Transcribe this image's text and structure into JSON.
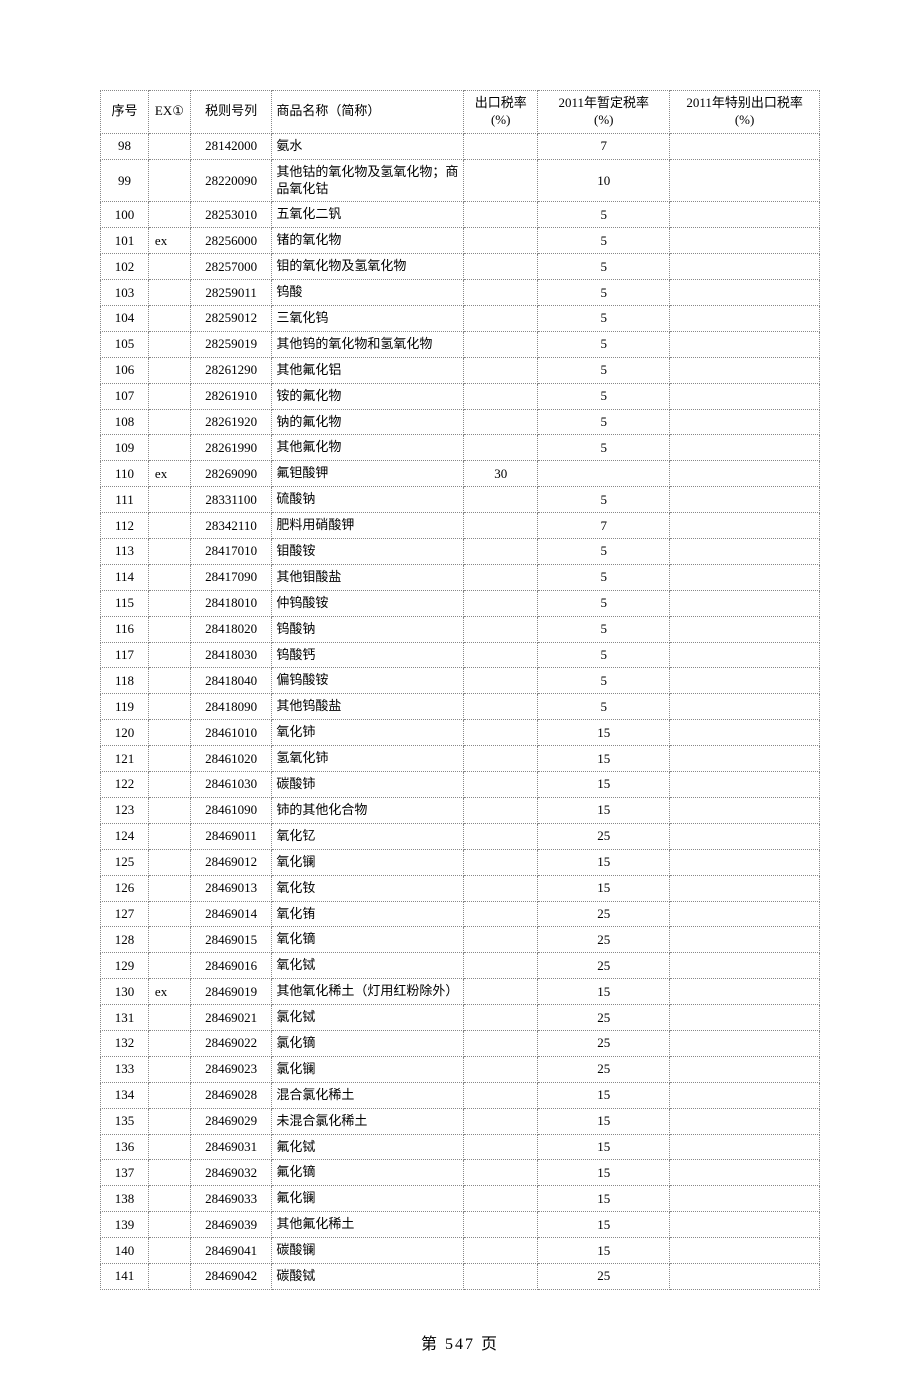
{
  "table": {
    "headers": {
      "seq": "序号",
      "ex": "EX①",
      "code": "税则号列",
      "name": "商品名称（简称）",
      "rate1": "出口税率\n(%)",
      "rate2": "2011年暂定税率\n(%)",
      "rate3": "2011年特别出口税率\n(%)"
    },
    "rows": [
      {
        "seq": "98",
        "ex": "",
        "code": "28142000",
        "name": "氨水",
        "rate1": "",
        "rate2": "7",
        "rate3": ""
      },
      {
        "seq": "99",
        "ex": "",
        "code": "28220090",
        "name": "其他钴的氧化物及氢氧化物；商品氧化钴",
        "rate1": "",
        "rate2": "10",
        "rate3": ""
      },
      {
        "seq": "100",
        "ex": "",
        "code": "28253010",
        "name": "五氧化二钒",
        "rate1": "",
        "rate2": "5",
        "rate3": ""
      },
      {
        "seq": "101",
        "ex": "ex",
        "code": "28256000",
        "name": "锗的氧化物",
        "rate1": "",
        "rate2": "5",
        "rate3": ""
      },
      {
        "seq": "102",
        "ex": "",
        "code": "28257000",
        "name": "钼的氧化物及氢氧化物",
        "rate1": "",
        "rate2": "5",
        "rate3": ""
      },
      {
        "seq": "103",
        "ex": "",
        "code": "28259011",
        "name": "钨酸",
        "rate1": "",
        "rate2": "5",
        "rate3": ""
      },
      {
        "seq": "104",
        "ex": "",
        "code": "28259012",
        "name": "三氧化钨",
        "rate1": "",
        "rate2": "5",
        "rate3": ""
      },
      {
        "seq": "105",
        "ex": "",
        "code": "28259019",
        "name": "其他钨的氧化物和氢氧化物",
        "rate1": "",
        "rate2": "5",
        "rate3": ""
      },
      {
        "seq": "106",
        "ex": "",
        "code": "28261290",
        "name": "其他氟化铝",
        "rate1": "",
        "rate2": "5",
        "rate3": ""
      },
      {
        "seq": "107",
        "ex": "",
        "code": "28261910",
        "name": "铵的氟化物",
        "rate1": "",
        "rate2": "5",
        "rate3": ""
      },
      {
        "seq": "108",
        "ex": "",
        "code": "28261920",
        "name": "钠的氟化物",
        "rate1": "",
        "rate2": "5",
        "rate3": ""
      },
      {
        "seq": "109",
        "ex": "",
        "code": "28261990",
        "name": "其他氟化物",
        "rate1": "",
        "rate2": "5",
        "rate3": ""
      },
      {
        "seq": "110",
        "ex": "ex",
        "code": "28269090",
        "name": "氟钽酸钾",
        "rate1": "30",
        "rate2": "",
        "rate3": ""
      },
      {
        "seq": "111",
        "ex": "",
        "code": "28331100",
        "name": "硫酸钠",
        "rate1": "",
        "rate2": "5",
        "rate3": ""
      },
      {
        "seq": "112",
        "ex": "",
        "code": "28342110",
        "name": "肥料用硝酸钾",
        "rate1": "",
        "rate2": "7",
        "rate3": ""
      },
      {
        "seq": "113",
        "ex": "",
        "code": "28417010",
        "name": "钼酸铵",
        "rate1": "",
        "rate2": "5",
        "rate3": ""
      },
      {
        "seq": "114",
        "ex": "",
        "code": "28417090",
        "name": "其他钼酸盐",
        "rate1": "",
        "rate2": "5",
        "rate3": ""
      },
      {
        "seq": "115",
        "ex": "",
        "code": "28418010",
        "name": "仲钨酸铵",
        "rate1": "",
        "rate2": "5",
        "rate3": ""
      },
      {
        "seq": "116",
        "ex": "",
        "code": "28418020",
        "name": "钨酸钠",
        "rate1": "",
        "rate2": "5",
        "rate3": ""
      },
      {
        "seq": "117",
        "ex": "",
        "code": "28418030",
        "name": "钨酸钙",
        "rate1": "",
        "rate2": "5",
        "rate3": ""
      },
      {
        "seq": "118",
        "ex": "",
        "code": "28418040",
        "name": "偏钨酸铵",
        "rate1": "",
        "rate2": "5",
        "rate3": ""
      },
      {
        "seq": "119",
        "ex": "",
        "code": "28418090",
        "name": "其他钨酸盐",
        "rate1": "",
        "rate2": "5",
        "rate3": ""
      },
      {
        "seq": "120",
        "ex": "",
        "code": "28461010",
        "name": "氧化铈",
        "rate1": "",
        "rate2": "15",
        "rate3": ""
      },
      {
        "seq": "121",
        "ex": "",
        "code": "28461020",
        "name": "氢氧化铈",
        "rate1": "",
        "rate2": "15",
        "rate3": ""
      },
      {
        "seq": "122",
        "ex": "",
        "code": "28461030",
        "name": "碳酸铈",
        "rate1": "",
        "rate2": "15",
        "rate3": ""
      },
      {
        "seq": "123",
        "ex": "",
        "code": "28461090",
        "name": "铈的其他化合物",
        "rate1": "",
        "rate2": "15",
        "rate3": ""
      },
      {
        "seq": "124",
        "ex": "",
        "code": "28469011",
        "name": "氧化钇",
        "rate1": "",
        "rate2": "25",
        "rate3": ""
      },
      {
        "seq": "125",
        "ex": "",
        "code": "28469012",
        "name": "氧化镧",
        "rate1": "",
        "rate2": "15",
        "rate3": ""
      },
      {
        "seq": "126",
        "ex": "",
        "code": "28469013",
        "name": "氧化钕",
        "rate1": "",
        "rate2": "15",
        "rate3": ""
      },
      {
        "seq": "127",
        "ex": "",
        "code": "28469014",
        "name": "氧化铕",
        "rate1": "",
        "rate2": "25",
        "rate3": ""
      },
      {
        "seq": "128",
        "ex": "",
        "code": "28469015",
        "name": "氧化镝",
        "rate1": "",
        "rate2": "25",
        "rate3": ""
      },
      {
        "seq": "129",
        "ex": "",
        "code": "28469016",
        "name": "氧化铽",
        "rate1": "",
        "rate2": "25",
        "rate3": ""
      },
      {
        "seq": "130",
        "ex": "ex",
        "code": "28469019",
        "name": "其他氧化稀土（灯用红粉除外）",
        "rate1": "",
        "rate2": "15",
        "rate3": ""
      },
      {
        "seq": "131",
        "ex": "",
        "code": "28469021",
        "name": "氯化铽",
        "rate1": "",
        "rate2": "25",
        "rate3": ""
      },
      {
        "seq": "132",
        "ex": "",
        "code": "28469022",
        "name": "氯化镝",
        "rate1": "",
        "rate2": "25",
        "rate3": ""
      },
      {
        "seq": "133",
        "ex": "",
        "code": "28469023",
        "name": "氯化镧",
        "rate1": "",
        "rate2": "25",
        "rate3": ""
      },
      {
        "seq": "134",
        "ex": "",
        "code": "28469028",
        "name": "混合氯化稀土",
        "rate1": "",
        "rate2": "15",
        "rate3": ""
      },
      {
        "seq": "135",
        "ex": "",
        "code": "28469029",
        "name": "未混合氯化稀土",
        "rate1": "",
        "rate2": "15",
        "rate3": ""
      },
      {
        "seq": "136",
        "ex": "",
        "code": "28469031",
        "name": "氟化铽",
        "rate1": "",
        "rate2": "15",
        "rate3": ""
      },
      {
        "seq": "137",
        "ex": "",
        "code": "28469032",
        "name": "氟化镝",
        "rate1": "",
        "rate2": "15",
        "rate3": ""
      },
      {
        "seq": "138",
        "ex": "",
        "code": "28469033",
        "name": "氟化镧",
        "rate1": "",
        "rate2": "15",
        "rate3": ""
      },
      {
        "seq": "139",
        "ex": "",
        "code": "28469039",
        "name": "其他氟化稀土",
        "rate1": "",
        "rate2": "15",
        "rate3": ""
      },
      {
        "seq": "140",
        "ex": "",
        "code": "28469041",
        "name": "碳酸镧",
        "rate1": "",
        "rate2": "15",
        "rate3": ""
      },
      {
        "seq": "141",
        "ex": "",
        "code": "28469042",
        "name": "碳酸铽",
        "rate1": "",
        "rate2": "25",
        "rate3": ""
      }
    ]
  },
  "footer": {
    "page_label": "第 547 页"
  }
}
